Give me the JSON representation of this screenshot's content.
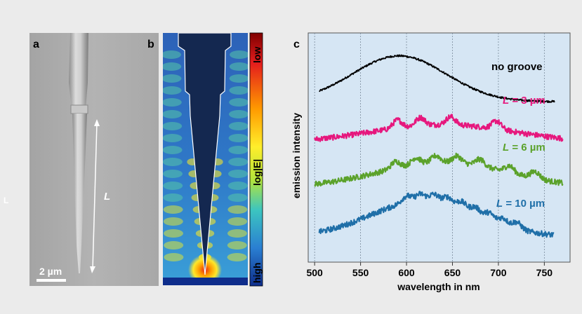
{
  "panels": {
    "a": {
      "label": "a",
      "length_symbol": "L",
      "scalebar": "2 µm"
    },
    "b": {
      "label": "b",
      "colorbar": {
        "top": "low",
        "mid": "log|E|",
        "bottom": "high"
      }
    },
    "c": {
      "label": "c"
    }
  },
  "margin_mark": "L",
  "chart_data": {
    "type": "line",
    "xlabel": "wavelength in nm",
    "ylabel": "emission intensity",
    "xlim": [
      493,
      778
    ],
    "xticks": [
      500,
      550,
      600,
      650,
      700,
      750
    ],
    "grid": "vertical dashed",
    "background": "#d6e6f4",
    "series": [
      {
        "name": "no groove",
        "label": "no groove",
        "color": "#000000",
        "x_range": [
          505,
          761
        ],
        "peak": 592,
        "amplitude": 0.2,
        "width": 72,
        "baseline": 0.7,
        "tail": 0.02,
        "modulation": 0
      },
      {
        "name": "L = 3 µm",
        "label_italic": "L",
        "label_rest": " = 3 µm",
        "color": "#e6177d",
        "x_range": [
          500,
          770
        ],
        "peak": 640,
        "amplitude": 0.08,
        "width": 110,
        "baseline": 0.52,
        "tail": 0.015,
        "modulation": 0.035,
        "fringe_centers": [
          590,
          615,
          648,
          698
        ]
      },
      {
        "name": "L = 6 µm",
        "label_italic": "L",
        "label_rest": " = 6 µm",
        "color": "#5ba22b",
        "x_range": [
          500,
          770
        ],
        "peak": 640,
        "amplitude": 0.11,
        "width": 100,
        "baseline": 0.325,
        "tail": 0.01,
        "modulation": 0.03,
        "fringe_centers": [
          588,
          610,
          632,
          655,
          680,
          712,
          740
        ]
      },
      {
        "name": "L = 10 µm",
        "label_italic": "L",
        "label_rest": " = 10 µm",
        "color": "#1f6fa8",
        "x_range": [
          505,
          760
        ],
        "peak": 620,
        "amplitude": 0.16,
        "width": 82,
        "baseline": 0.11,
        "tail": 0.005,
        "modulation": 0.028,
        "fringe_centers": [
          600,
          615,
          630,
          645,
          660,
          675,
          690,
          705,
          720
        ]
      }
    ]
  },
  "colors": {
    "panel_bg": "#ebebeb",
    "map_tip": "#142850",
    "chart_bg": "#d6e6f4"
  }
}
